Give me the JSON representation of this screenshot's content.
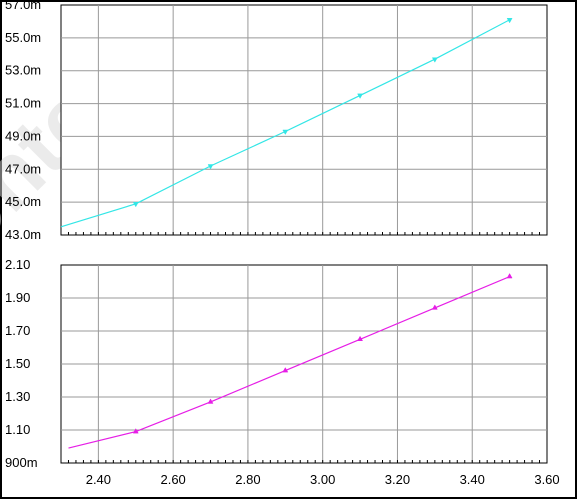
{
  "watermark": "ontent",
  "colors": {
    "series_top": "#33e6e6",
    "series_bottom": "#e61ee6",
    "grid": "#999999",
    "axis": "#000000"
  },
  "chart_data": [
    {
      "type": "line",
      "x": [
        2.3,
        2.5,
        2.7,
        2.9,
        3.1,
        3.3,
        3.5
      ],
      "series": [
        {
          "values": [
            0.0435,
            0.0449,
            0.0472,
            0.0493,
            0.0515,
            0.0537,
            0.0561
          ]
        }
      ],
      "xlim": [
        2.3,
        3.6
      ],
      "ylim": [
        0.043,
        0.057
      ],
      "yticks": [
        {
          "v": 0.057,
          "label": "57.0m"
        },
        {
          "v": 0.055,
          "label": "55.0m"
        },
        {
          "v": 0.053,
          "label": "53.0m"
        },
        {
          "v": 0.051,
          "label": "51.0m"
        },
        {
          "v": 0.049,
          "label": "49.0m"
        },
        {
          "v": 0.047,
          "label": "47.0m"
        },
        {
          "v": 0.045,
          "label": "45.0m"
        },
        {
          "v": 0.043,
          "label": "43.0m"
        }
      ],
      "grid": true
    },
    {
      "type": "line",
      "x": [
        2.32,
        2.5,
        2.7,
        2.9,
        3.1,
        3.3,
        3.5
      ],
      "series": [
        {
          "values": [
            0.99,
            1.09,
            1.27,
            1.46,
            1.65,
            1.84,
            2.03
          ]
        }
      ],
      "xlim": [
        2.3,
        3.6
      ],
      "ylim": [
        0.9,
        2.1
      ],
      "yticks": [
        {
          "v": 2.1,
          "label": "2.10"
        },
        {
          "v": 1.9,
          "label": "1.90"
        },
        {
          "v": 1.7,
          "label": "1.70"
        },
        {
          "v": 1.5,
          "label": "1.50"
        },
        {
          "v": 1.3,
          "label": "1.30"
        },
        {
          "v": 1.1,
          "label": "1.10"
        },
        {
          "v": 0.9,
          "label": "900m"
        }
      ],
      "xticks": [
        "2.40",
        "2.60",
        "2.80",
        "3.00",
        "3.20",
        "3.40",
        "3.60"
      ],
      "grid": true
    }
  ]
}
